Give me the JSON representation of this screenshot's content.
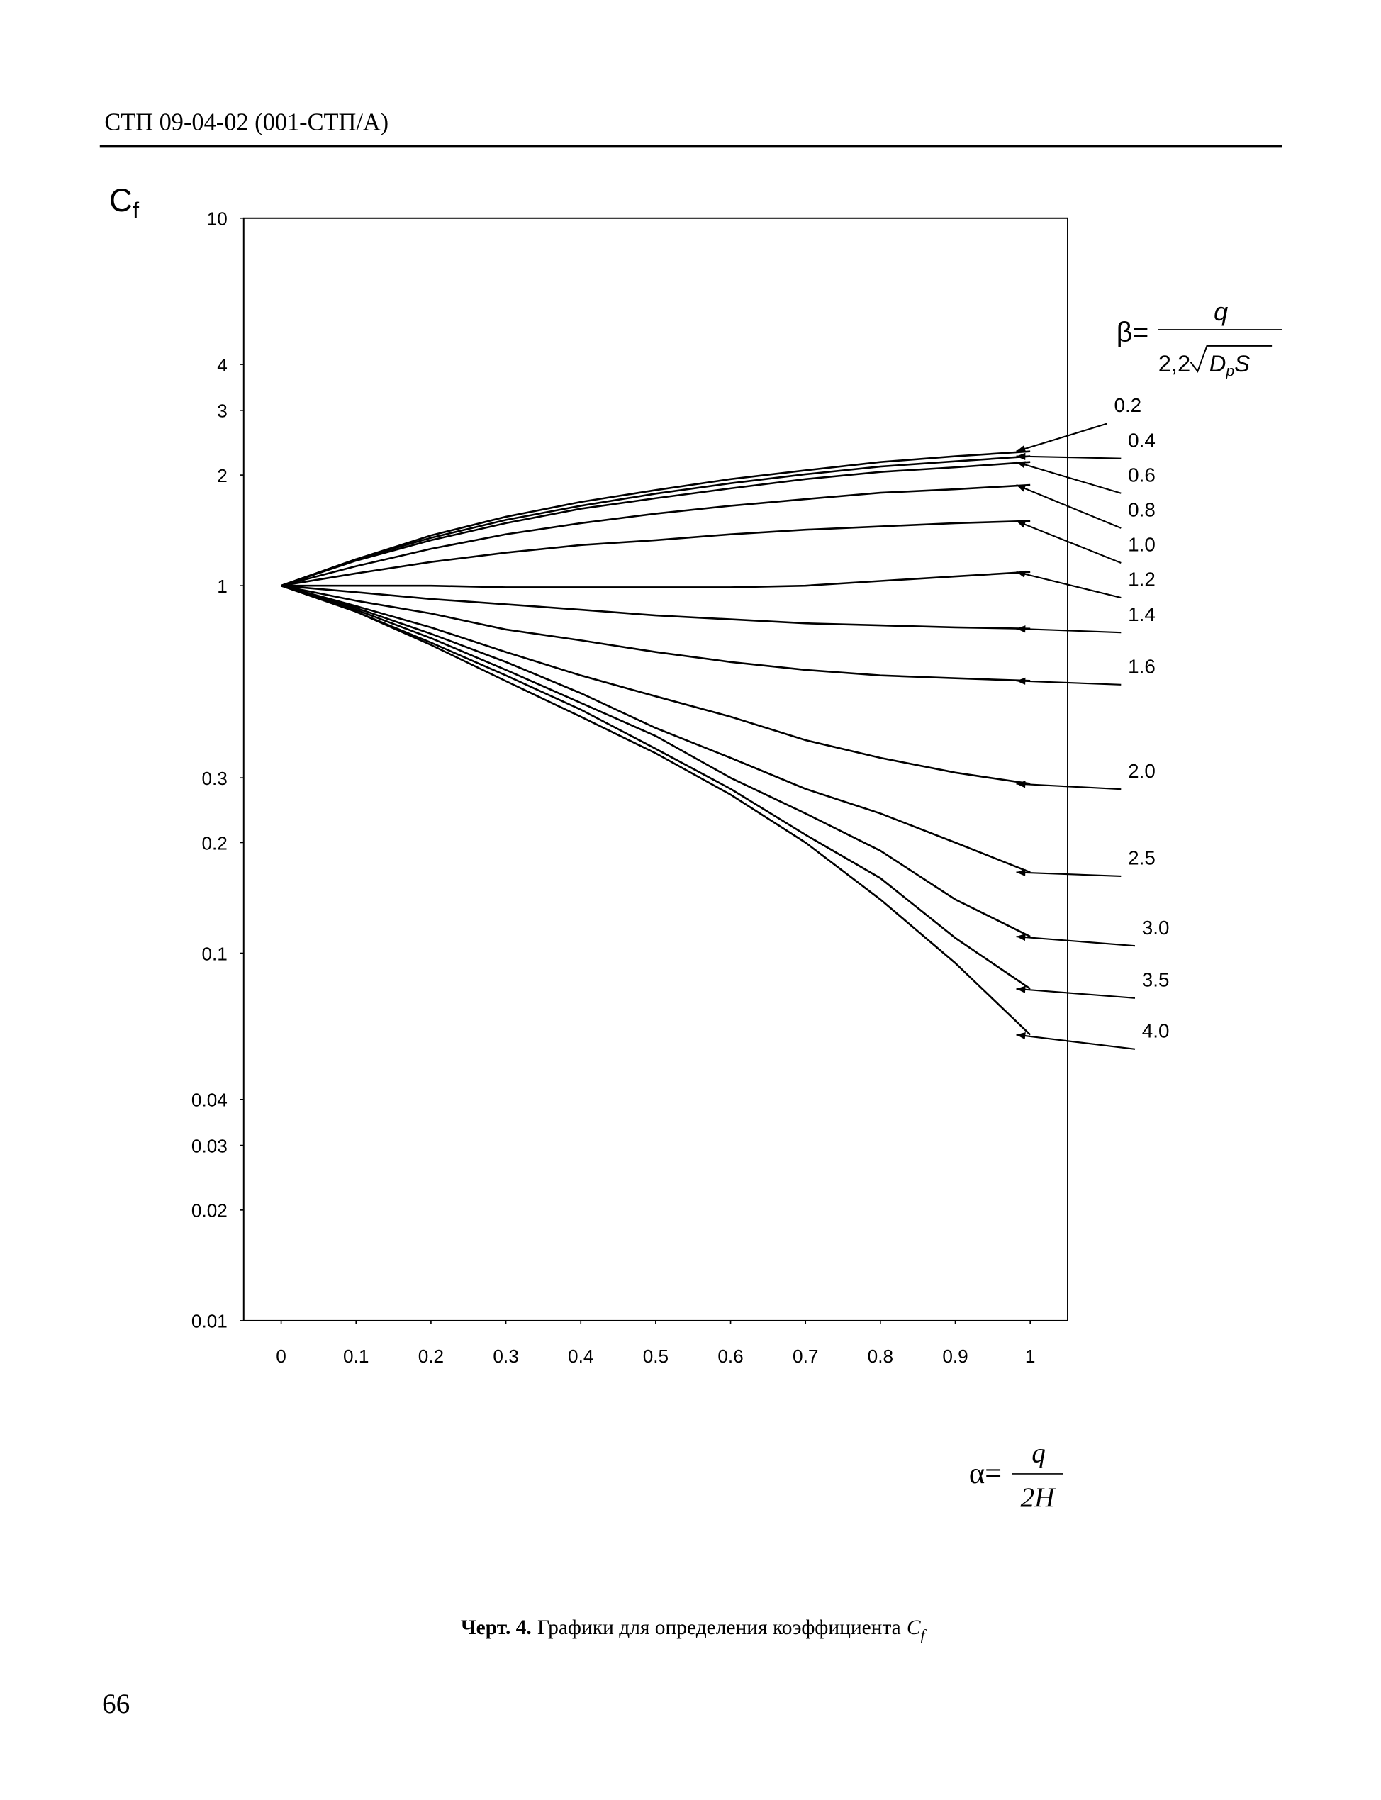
{
  "header": {
    "title": "СТП 09-04-02 (001-СТП/А)"
  },
  "chart_data": {
    "type": "line",
    "y_label": {
      "main": "C",
      "sub": "f"
    },
    "x_formula": {
      "lhs": "α=",
      "num": "q",
      "den": "2H"
    },
    "series_formula": {
      "lhs": "β=",
      "num": "q",
      "den_coef": "2,2",
      "den_main": "D",
      "den_sub": "p",
      "den_tail": "S"
    },
    "x": [
      0,
      0.1,
      0.2,
      0.3,
      0.4,
      0.5,
      0.6,
      0.7,
      0.8,
      0.9,
      1
    ],
    "xlim": [
      -0.05,
      1.05
    ],
    "xticks": [
      0,
      0.1,
      0.2,
      0.3,
      0.4,
      0.5,
      0.6,
      0.7,
      0.8,
      0.9,
      1
    ],
    "ylim": [
      0.01,
      10
    ],
    "yticks": [
      0.01,
      0.02,
      0.03,
      0.04,
      0.1,
      0.2,
      0.3,
      1,
      2,
      3,
      4,
      10
    ],
    "log_y": true,
    "grid": false,
    "series": [
      {
        "name": "0.2",
        "color": "#000000",
        "values": [
          1,
          1.18,
          1.37,
          1.54,
          1.69,
          1.82,
          1.95,
          2.06,
          2.17,
          2.25,
          2.32
        ]
      },
      {
        "name": "0.4",
        "color": "#000000",
        "values": [
          1,
          1.18,
          1.35,
          1.51,
          1.65,
          1.78,
          1.9,
          2.01,
          2.11,
          2.18,
          2.25
        ]
      },
      {
        "name": "0.6",
        "color": "#000000",
        "values": [
          1,
          1.17,
          1.33,
          1.48,
          1.62,
          1.73,
          1.84,
          1.95,
          2.04,
          2.1,
          2.17
        ]
      },
      {
        "name": "0.8",
        "color": "#000000",
        "values": [
          1,
          1.13,
          1.26,
          1.38,
          1.48,
          1.57,
          1.65,
          1.72,
          1.79,
          1.83,
          1.88
        ]
      },
      {
        "name": "1.0",
        "color": "#000000",
        "values": [
          1,
          1.08,
          1.16,
          1.23,
          1.29,
          1.33,
          1.38,
          1.42,
          1.45,
          1.48,
          1.5
        ]
      },
      {
        "name": "1.2",
        "color": "#000000",
        "values": [
          1,
          1,
          1,
          0.99,
          0.99,
          0.99,
          0.99,
          1,
          1.03,
          1.06,
          1.09
        ]
      },
      {
        "name": "1.4",
        "color": "#000000",
        "values": [
          1,
          0.96,
          0.92,
          0.89,
          0.86,
          0.83,
          0.81,
          0.79,
          0.78,
          0.77,
          0.764
        ]
      },
      {
        "name": "1.6",
        "color": "#000000",
        "values": [
          1,
          0.91,
          0.84,
          0.76,
          0.71,
          0.66,
          0.62,
          0.59,
          0.57,
          0.56,
          0.551
        ]
      },
      {
        "name": "2.0",
        "color": "#000000",
        "values": [
          1,
          0.88,
          0.77,
          0.66,
          0.57,
          0.5,
          0.44,
          0.38,
          0.34,
          0.31,
          0.289
        ]
      },
      {
        "name": "2.5",
        "color": "#000000",
        "values": [
          1,
          0.87,
          0.74,
          0.62,
          0.51,
          0.41,
          0.34,
          0.28,
          0.24,
          0.2,
          0.166
        ]
      },
      {
        "name": "3.0",
        "color": "#000000",
        "values": [
          1,
          0.86,
          0.72,
          0.59,
          0.48,
          0.39,
          0.3,
          0.24,
          0.19,
          0.14,
          0.111
        ]
      },
      {
        "name": "3.5",
        "color": "#000000",
        "values": [
          1,
          0.85,
          0.7,
          0.57,
          0.46,
          0.36,
          0.28,
          0.21,
          0.16,
          0.11,
          0.08
        ]
      },
      {
        "name": "4.0",
        "color": "#000000",
        "values": [
          1,
          0.85,
          0.69,
          0.55,
          0.44,
          0.35,
          0.27,
          0.2,
          0.14,
          0.094,
          0.06
        ]
      }
    ]
  },
  "caption": {
    "label": "Черт. 4.",
    "text": "Графики для определения коэффициента",
    "symbol": "C",
    "symbol_sub": "f"
  },
  "footer": {
    "page": "66"
  }
}
